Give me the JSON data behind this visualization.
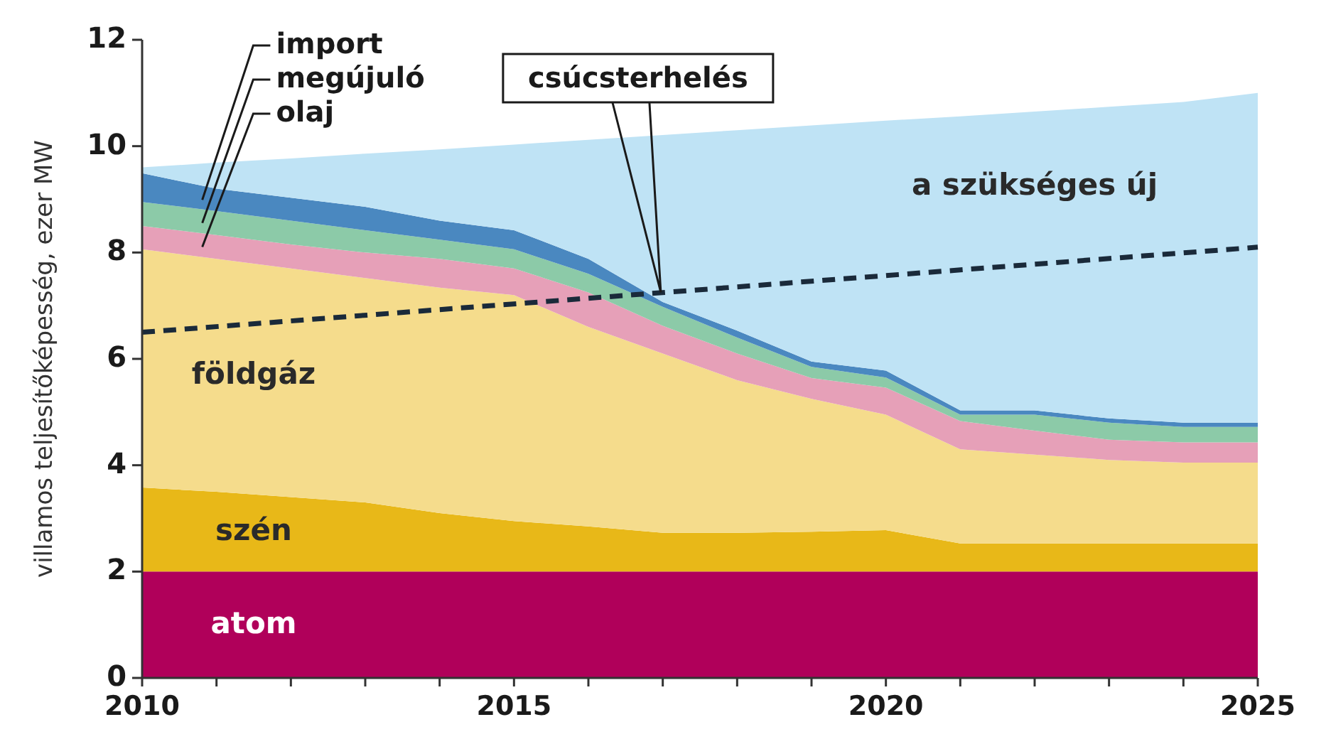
{
  "chart_data": {
    "type": "area",
    "stacked": true,
    "ylabel": "villamos teljesítőképesség, ezer MW",
    "x": [
      2010,
      2011,
      2012,
      2013,
      2014,
      2015,
      2016,
      2017,
      2018,
      2019,
      2020,
      2021,
      2022,
      2023,
      2024,
      2025
    ],
    "xlim": [
      2010,
      2025
    ],
    "xticks": [
      2010,
      {
        "value": 2011,
        "label": null
      },
      {
        "value": 2012,
        "label": null
      },
      {
        "value": 2013,
        "label": null
      },
      {
        "value": 2014,
        "label": null
      },
      2015,
      {
        "value": 2016,
        "label": null
      },
      {
        "value": 2017,
        "label": null
      },
      {
        "value": 2018,
        "label": null
      },
      {
        "value": 2019,
        "label": null
      },
      2020,
      {
        "value": 2021,
        "label": null
      },
      {
        "value": 2022,
        "label": null
      },
      {
        "value": 2023,
        "label": null
      },
      {
        "value": 2024,
        "label": null
      },
      2025
    ],
    "ylim": [
      0,
      12
    ],
    "yticks": [
      0,
      2,
      4,
      6,
      8,
      10,
      12
    ],
    "series": [
      {
        "name": "atom",
        "color": "#b0005a",
        "values": [
          2,
          2,
          2,
          2,
          2,
          2,
          2,
          2,
          2,
          2,
          2,
          2,
          2,
          2,
          2,
          2
        ]
      },
      {
        "name": "szén",
        "color": "#e8b818",
        "values": [
          1.58,
          1.5,
          1.4,
          1.3,
          1.1,
          0.95,
          0.85,
          0.73,
          0.73,
          0.75,
          0.78,
          0.53,
          0.53,
          0.53,
          0.53,
          0.53
        ]
      },
      {
        "name": "földgáz",
        "color": "#f5dc8c",
        "values": [
          4.48,
          4.38,
          4.3,
          4.22,
          4.24,
          4.25,
          3.75,
          3.37,
          2.87,
          2.5,
          2.17,
          1.77,
          1.67,
          1.57,
          1.52,
          1.52
        ]
      },
      {
        "name": "olaj",
        "color": "#e6a0b8",
        "values": [
          0.44,
          0.45,
          0.45,
          0.48,
          0.54,
          0.5,
          0.65,
          0.52,
          0.5,
          0.39,
          0.51,
          0.53,
          0.45,
          0.38,
          0.38,
          0.38
        ]
      },
      {
        "name": "megújuló",
        "color": "#8ccaa8",
        "values": [
          0.45,
          0.45,
          0.45,
          0.42,
          0.36,
          0.36,
          0.35,
          0.36,
          0.3,
          0.21,
          0.19,
          0.12,
          0.3,
          0.32,
          0.29,
          0.29
        ]
      },
      {
        "name": "import",
        "color": "#4a88c0",
        "values": [
          0.54,
          0.42,
          0.43,
          0.44,
          0.36,
          0.36,
          0.28,
          0.09,
          0.13,
          0.1,
          0.13,
          0.08,
          0.08,
          0.08,
          0.08,
          0.08
        ]
      },
      {
        "name": "a szükséges új",
        "color": "#bfe3f5",
        "values": [
          0.11,
          0.49,
          0.74,
          1.0,
          1.34,
          1.61,
          2.24,
          3.14,
          3.77,
          4.44,
          4.7,
          5.53,
          5.62,
          5.86,
          6.03,
          6.2
        ]
      },
      {
        "name": "csúcsterhelés",
        "type": "line",
        "line_style": "dashed",
        "color": "#1a2a3a",
        "x": [
          2010,
          2025
        ],
        "values": [
          6.5,
          8.1
        ]
      }
    ]
  }
}
